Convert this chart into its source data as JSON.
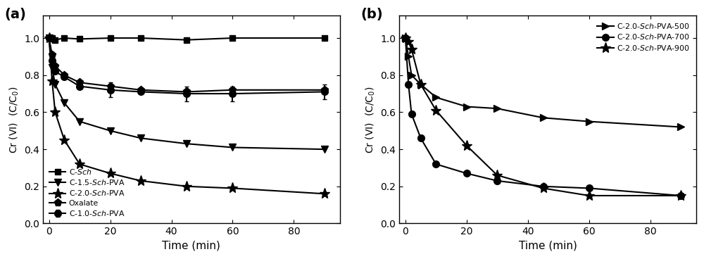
{
  "panel_a": {
    "series": [
      {
        "label": "C-$\\it{Sch}$",
        "marker": "s",
        "x": [
          0,
          1,
          2,
          5,
          10,
          20,
          30,
          45,
          60,
          90
        ],
        "y": [
          1.0,
          1.0,
          0.99,
          1.0,
          0.995,
          1.0,
          1.0,
          0.99,
          1.0,
          1.0
        ],
        "yerr": [
          0,
          0,
          0,
          0,
          0,
          0,
          0,
          0,
          0,
          0
        ],
        "markersize": 6
      },
      {
        "label": "C-1.0-$\\it{Sch}$-PVA",
        "marker": "o",
        "x": [
          0,
          1,
          2,
          5,
          10,
          20,
          30,
          45,
          60,
          90
        ],
        "y": [
          1.0,
          0.88,
          0.82,
          0.79,
          0.74,
          0.72,
          0.71,
          0.7,
          0.7,
          0.71
        ],
        "yerr": [
          0,
          0,
          0,
          0,
          0,
          0.04,
          0,
          0.04,
          0.04,
          0.04
        ],
        "markersize": 7
      },
      {
        "label": "C-1.5-$\\it{Sch}$-PVA",
        "marker": "v",
        "x": [
          0,
          1,
          2,
          5,
          10,
          20,
          30,
          45,
          60,
          90
        ],
        "y": [
          1.0,
          0.84,
          0.75,
          0.65,
          0.55,
          0.5,
          0.46,
          0.43,
          0.41,
          0.4
        ],
        "yerr": [
          0,
          0,
          0,
          0,
          0,
          0,
          0,
          0,
          0,
          0
        ],
        "markersize": 7
      },
      {
        "label": "C-2.0-$\\it{Sch}$-PVA",
        "marker": "*",
        "x": [
          0,
          1,
          2,
          5,
          10,
          20,
          30,
          45,
          60,
          90
        ],
        "y": [
          1.0,
          0.77,
          0.6,
          0.45,
          0.32,
          0.27,
          0.23,
          0.2,
          0.19,
          0.16
        ],
        "yerr": [
          0,
          0,
          0,
          0,
          0,
          0,
          0,
          0,
          0,
          0
        ],
        "markersize": 11
      },
      {
        "label": "Oxalate",
        "marker": "p",
        "x": [
          0,
          1,
          2,
          5,
          10,
          20,
          30,
          45,
          60,
          90
        ],
        "y": [
          1.0,
          0.91,
          0.85,
          0.8,
          0.76,
          0.74,
          0.72,
          0.71,
          0.72,
          0.72
        ],
        "yerr": [
          0,
          0,
          0,
          0,
          0,
          0,
          0,
          0,
          0,
          0
        ],
        "markersize": 8
      }
    ],
    "xlabel": "Time (min)",
    "ylabel": "Cr (VI)  (C/C$_0$)",
    "xlim": [
      -2,
      95
    ],
    "ylim": [
      0,
      1.12
    ],
    "xticks": [
      0,
      20,
      40,
      60,
      80
    ],
    "yticks": [
      0,
      0.2,
      0.4,
      0.6,
      0.8,
      1.0
    ],
    "label": "(a)"
  },
  "panel_b": {
    "series": [
      {
        "label": "C-2.0-$\\it{Sch}$-PVA-500",
        "marker": ">",
        "x": [
          0,
          1,
          2,
          5,
          10,
          20,
          30,
          45,
          60,
          90
        ],
        "y": [
          1.0,
          0.9,
          0.8,
          0.75,
          0.68,
          0.63,
          0.62,
          0.57,
          0.55,
          0.52
        ],
        "yerr": [
          0,
          0,
          0,
          0,
          0,
          0,
          0,
          0,
          0,
          0
        ],
        "markersize": 7
      },
      {
        "label": "C-2.0-$\\it{Sch}$-PVA-700",
        "marker": "o",
        "x": [
          0,
          1,
          2,
          5,
          10,
          20,
          30,
          45,
          60,
          90
        ],
        "y": [
          1.0,
          0.75,
          0.59,
          0.46,
          0.32,
          0.27,
          0.23,
          0.2,
          0.19,
          0.15
        ],
        "yerr": [
          0,
          0,
          0,
          0,
          0,
          0,
          0,
          0,
          0,
          0
        ],
        "markersize": 7
      },
      {
        "label": "C-2.0-$\\it{Sch}$-PVA-900",
        "marker": "*",
        "x": [
          0,
          1,
          2,
          5,
          10,
          20,
          30,
          45,
          60,
          90
        ],
        "y": [
          1.0,
          0.98,
          0.94,
          0.75,
          0.61,
          0.42,
          0.26,
          0.19,
          0.15,
          0.15
        ],
        "yerr": [
          0,
          0,
          0,
          0,
          0,
          0,
          0,
          0,
          0,
          0
        ],
        "markersize": 11
      }
    ],
    "xlabel": "Time (min)",
    "ylabel": "Cr (VI)  (C/C$_0$)",
    "xlim": [
      -2,
      95
    ],
    "ylim": [
      0,
      1.12
    ],
    "xticks": [
      0,
      20,
      40,
      60,
      80
    ],
    "yticks": [
      0,
      0.2,
      0.4,
      0.6,
      0.8,
      1.0
    ],
    "label": "(b)"
  },
  "color": "#000000",
  "linewidth": 1.5
}
